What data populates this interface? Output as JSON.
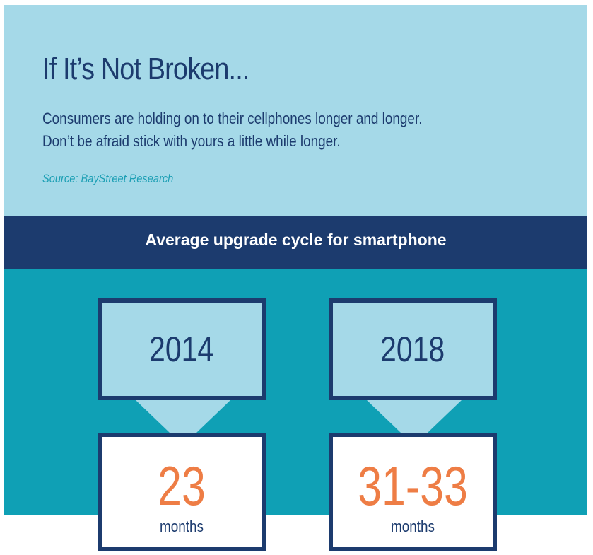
{
  "header": {
    "title": "If It’s Not Broken...",
    "subtitle_line1": "Consumers are holding on to their cellphones longer and longer.",
    "subtitle_line2": "Don’t be afraid stick with yours a little while longer.",
    "source": "Source: BayStreet Research"
  },
  "band": {
    "label": "Average upgrade cycle for smartphone"
  },
  "cards": [
    {
      "year": "2014",
      "value": "23",
      "unit": "months"
    },
    {
      "year": "2018",
      "value": "31-33",
      "unit": "months"
    }
  ],
  "colors": {
    "light_blue": "#a5d9e8",
    "navy": "#1c3b6e",
    "teal": "#0fa0b5",
    "orange": "#ee7d45",
    "source_teal": "#1c9fb4"
  }
}
